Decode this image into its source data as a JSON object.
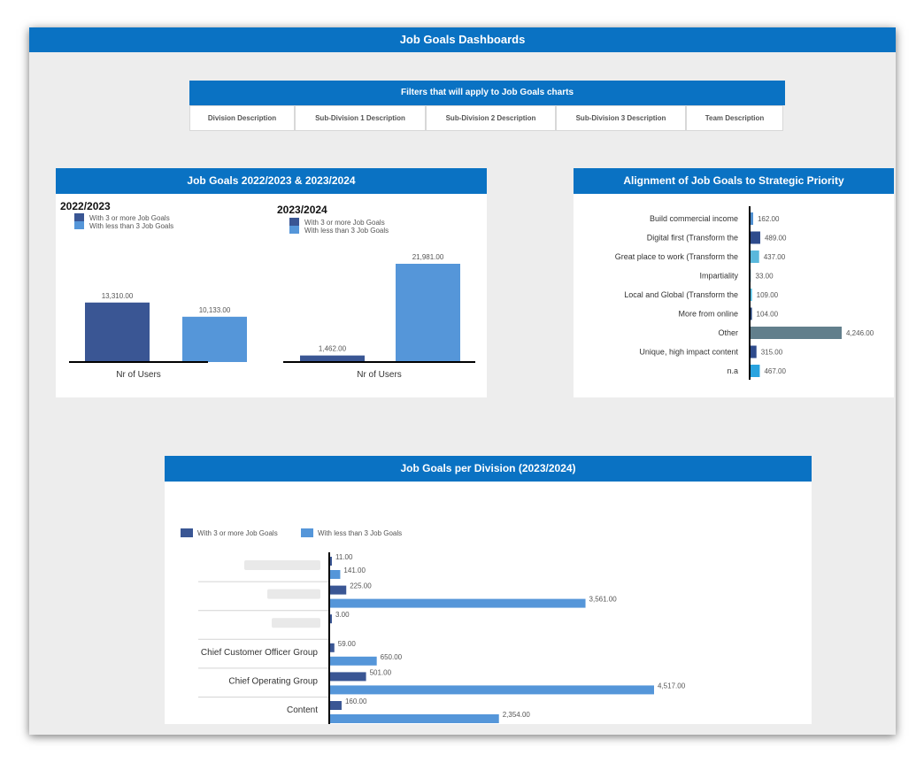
{
  "header": {
    "title": "Job Goals Dashboards"
  },
  "filters": {
    "title": "Filters that will apply to Job Goals charts",
    "items": [
      "Division Description",
      "Sub-Division 1 Description",
      "Sub-Division 2 Description",
      "Sub-Division 3 Description",
      "Team Description"
    ]
  },
  "colors": {
    "dark": "#3a5694",
    "light": "#5596d9",
    "header": "#0a72c3"
  },
  "panels": {
    "job_goals": {
      "title": "Job Goals 2022/2023 & 2023/2024"
    },
    "alignment": {
      "title": "Alignment of Job Goals to Strategic Priority"
    },
    "division": {
      "title": "Job Goals per Division (2023/2024)"
    }
  },
  "chart_data": [
    {
      "type": "bar",
      "title": "2022/2023",
      "xlabel": "Nr of Users",
      "categories": [
        "Nr of Users"
      ],
      "series": [
        {
          "name": "With 3 or more Job Goals",
          "values": [
            13310.0
          ],
          "labels": [
            "13,310.00"
          ]
        },
        {
          "name": "With less than 3 Job Goals",
          "values": [
            10133.0
          ],
          "labels": [
            "10,133.00"
          ]
        }
      ]
    },
    {
      "type": "bar",
      "title": "2023/2024",
      "xlabel": "Nr of Users",
      "categories": [
        "Nr of Users"
      ],
      "series": [
        {
          "name": "With 3 or more Job Goals",
          "values": [
            1462.0
          ],
          "labels": [
            "1,462.00"
          ]
        },
        {
          "name": "With less than 3 Job Goals",
          "values": [
            21981.0
          ],
          "labels": [
            "21,981.00"
          ]
        }
      ]
    },
    {
      "type": "bar",
      "orientation": "horizontal",
      "categories": [
        "Build commercial income",
        "Digital first (Transform the",
        "Great place to work (Transform the",
        "Impartiality",
        "Local and Global (Transform the",
        "More from online",
        "Other",
        "Unique, high impact content",
        "n.a"
      ],
      "values": [
        162.0,
        489.0,
        437.0,
        33.0,
        109.0,
        104.0,
        4246.0,
        315.0,
        467.0
      ],
      "labels": [
        "162.00",
        "489.00",
        "437.00",
        "33.00",
        "109.00",
        "104.00",
        "4,246.00",
        "315.00",
        "467.00"
      ],
      "bar_colors": [
        "#4f8fd0",
        "#2e4b8c",
        "#5ab8dc",
        "#9ecbe8",
        "#56c3e8",
        "#1f3f7a",
        "#627f8c",
        "#2e4b8c",
        "#29a3df"
      ]
    },
    {
      "type": "bar",
      "orientation": "horizontal",
      "legend": "top-left",
      "categories": [
        "",
        "",
        "",
        "Chief Customer Officer Group",
        "Chief Operating Group",
        "Content"
      ],
      "series": [
        {
          "name": "With 3 or more Job Goals",
          "values": [
            11.0,
            225.0,
            3.0,
            59.0,
            501.0,
            160.0
          ],
          "labels": [
            "11.00",
            "225.00",
            "3.00",
            "59.00",
            "501.00",
            "160.00"
          ]
        },
        {
          "name": "With less than 3 Job Goals",
          "values": [
            141.0,
            3561.0,
            null,
            650.0,
            4517.0,
            2354.0
          ],
          "labels": [
            "141.00",
            "3,561.00",
            "",
            "650.00",
            "4,517.00",
            "2,354.00"
          ]
        }
      ]
    }
  ]
}
